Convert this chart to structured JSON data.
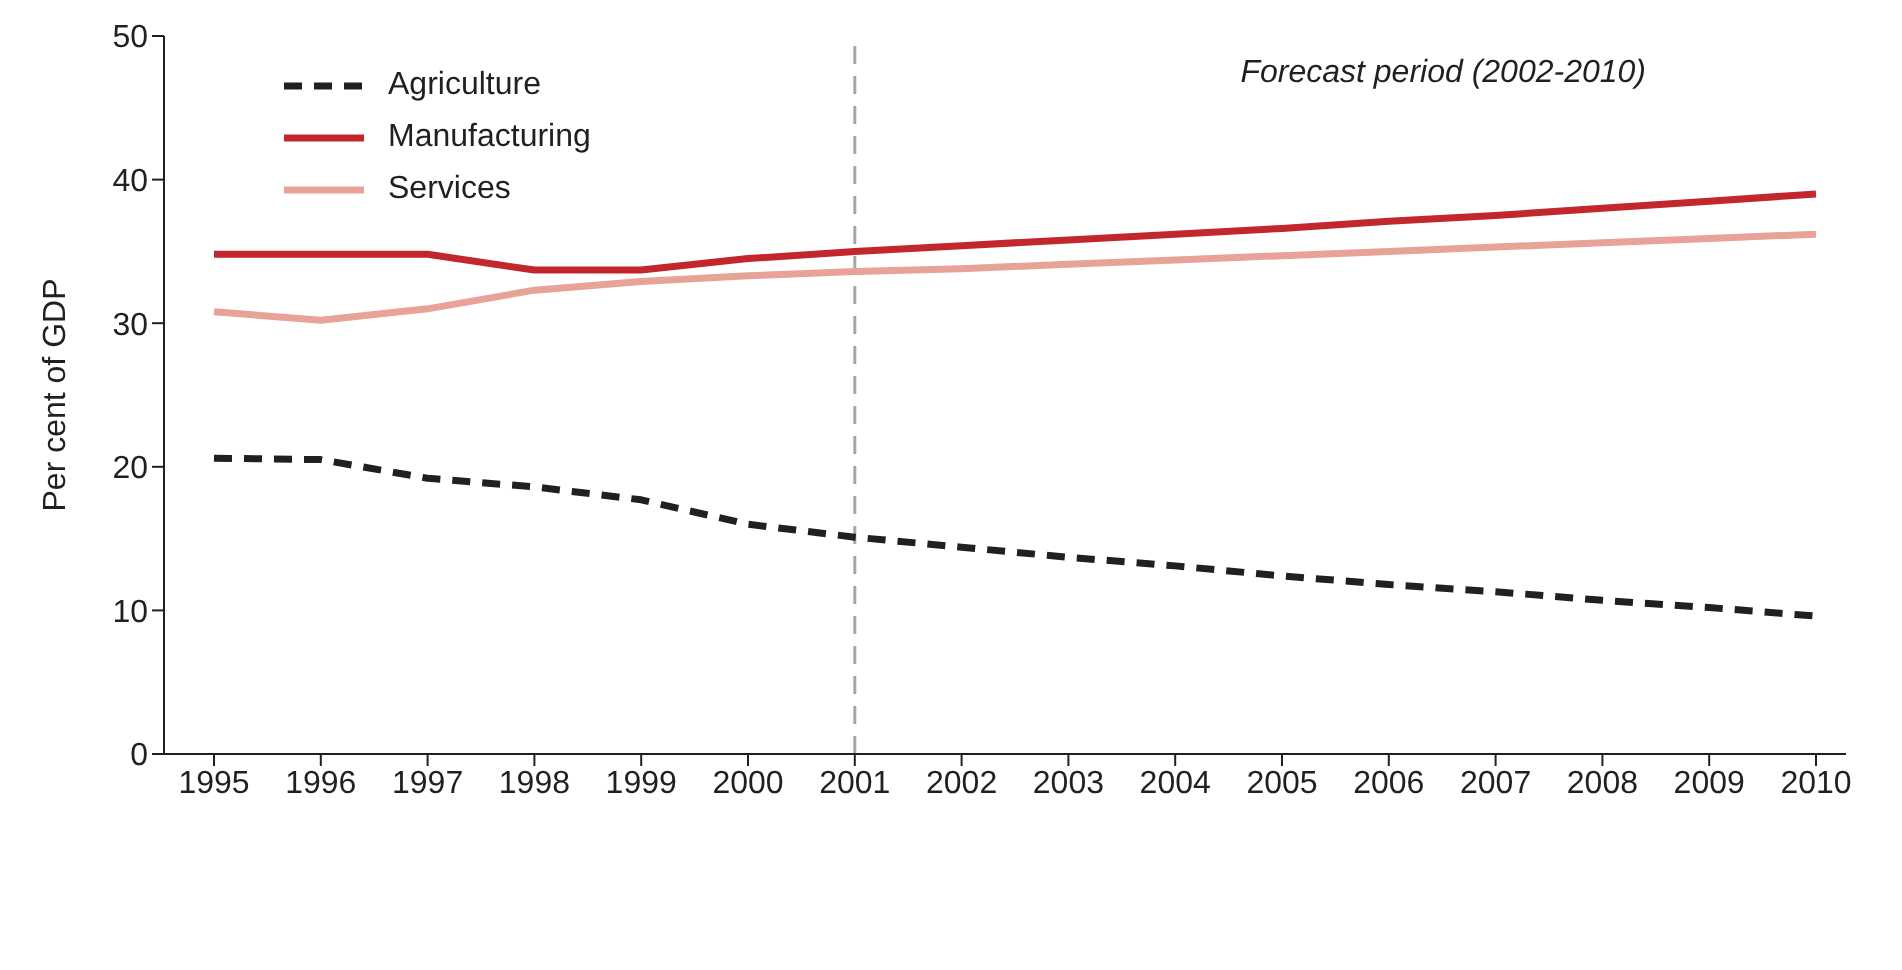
{
  "chart_data": {
    "type": "line",
    "ylabel": "Per cent of GDP",
    "categories": [
      "1995",
      "1996",
      "1997",
      "1998",
      "1999",
      "2000",
      "2001",
      "2002",
      "2003",
      "2004",
      "2005",
      "2006",
      "2007",
      "2008",
      "2009",
      "2010"
    ],
    "series": [
      {
        "name": "Agriculture",
        "color": "#231f20",
        "line_style": "dashed",
        "values": [
          20.6,
          20.5,
          19.2,
          18.6,
          17.7,
          16.0,
          15.1,
          14.4,
          13.7,
          13.1,
          12.4,
          11.8,
          11.3,
          10.7,
          10.2,
          9.6
        ]
      },
      {
        "name": "Manufacturing",
        "color": "#c1272d",
        "line_style": "solid",
        "values": [
          34.8,
          34.8,
          34.8,
          33.7,
          33.7,
          34.5,
          35.0,
          35.4,
          35.8,
          36.2,
          36.6,
          37.1,
          37.5,
          38.0,
          38.5,
          39.0
        ]
      },
      {
        "name": "Services",
        "color": "#e8a297",
        "line_style": "solid",
        "values": [
          30.8,
          30.2,
          31.0,
          32.3,
          32.9,
          33.3,
          33.6,
          33.8,
          34.1,
          34.4,
          34.7,
          35.0,
          35.3,
          35.6,
          35.9,
          36.2
        ]
      }
    ],
    "ylim": [
      0,
      50
    ],
    "yticks": [
      0,
      10,
      20,
      30,
      40,
      50
    ],
    "grid": false,
    "legend": "top left",
    "marker": "none",
    "ref_lines": [
      {
        "axis": "x",
        "value": "2001",
        "color": "#a6a6a6",
        "line_style": "dashed"
      }
    ],
    "annotations": [
      "Forecast period (2002-2010)"
    ]
  }
}
